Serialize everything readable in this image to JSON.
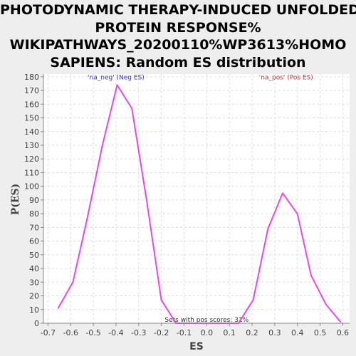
{
  "chart_data": {
    "type": "line",
    "title_lines": [
      "PHOTODYNAMIC THERAPY-INDUCED UNFOLDED",
      "PROTEIN RESPONSE%",
      "WIKIPATHWAYS_20200110%WP3613%HOMO",
      "SAPIENS: Random ES distribution"
    ],
    "xlabel": "ES",
    "ylabel": "P(ES)",
    "xlim": [
      -0.72,
      0.63
    ],
    "ylim": [
      0,
      182
    ],
    "x_ticks": [
      -0.7,
      -0.6,
      -0.5,
      -0.4,
      -0.3,
      -0.2,
      -0.1,
      0.0,
      0.1,
      0.2,
      0.3,
      0.4,
      0.5,
      0.6
    ],
    "x_tick_labels": [
      "-0.7",
      "-0.6",
      "-0.5",
      "-0.4",
      "-0.3",
      "-0.2",
      "-0.1",
      "0.0",
      "0.1",
      "0.2",
      "0.3",
      "0.4",
      "0.5",
      "0.6"
    ],
    "y_ticks": [
      0,
      10,
      20,
      30,
      40,
      50,
      60,
      70,
      80,
      90,
      100,
      110,
      120,
      130,
      140,
      150,
      160,
      170,
      180
    ],
    "grid": true,
    "series": [
      {
        "color": "#ee44ee",
        "x": [
          -0.655,
          -0.59,
          -0.525,
          -0.46,
          -0.395,
          -0.33,
          -0.265,
          -0.2,
          -0.135,
          -0.07,
          -0.005,
          0.06,
          0.14,
          0.205,
          0.27,
          0.335,
          0.4,
          0.46,
          0.525,
          0.59
        ],
        "y": [
          11,
          30,
          78,
          130,
          174,
          157,
          90,
          17,
          0,
          0,
          0,
          0,
          0,
          17,
          69,
          95,
          80,
          35,
          14,
          1
        ]
      }
    ],
    "annotations": [
      {
        "text": "'na_neg' (Neg ES)",
        "x": -0.4,
        "y": 178,
        "color": "#3333cc"
      },
      {
        "text": "'na_pos' (Pos ES)",
        "x": 0.35,
        "y": 178,
        "color": "#cc3333"
      },
      {
        "text": "Sets with pos scores: 31%",
        "x": 0.0,
        "y": 1,
        "color": "#333333"
      }
    ]
  }
}
